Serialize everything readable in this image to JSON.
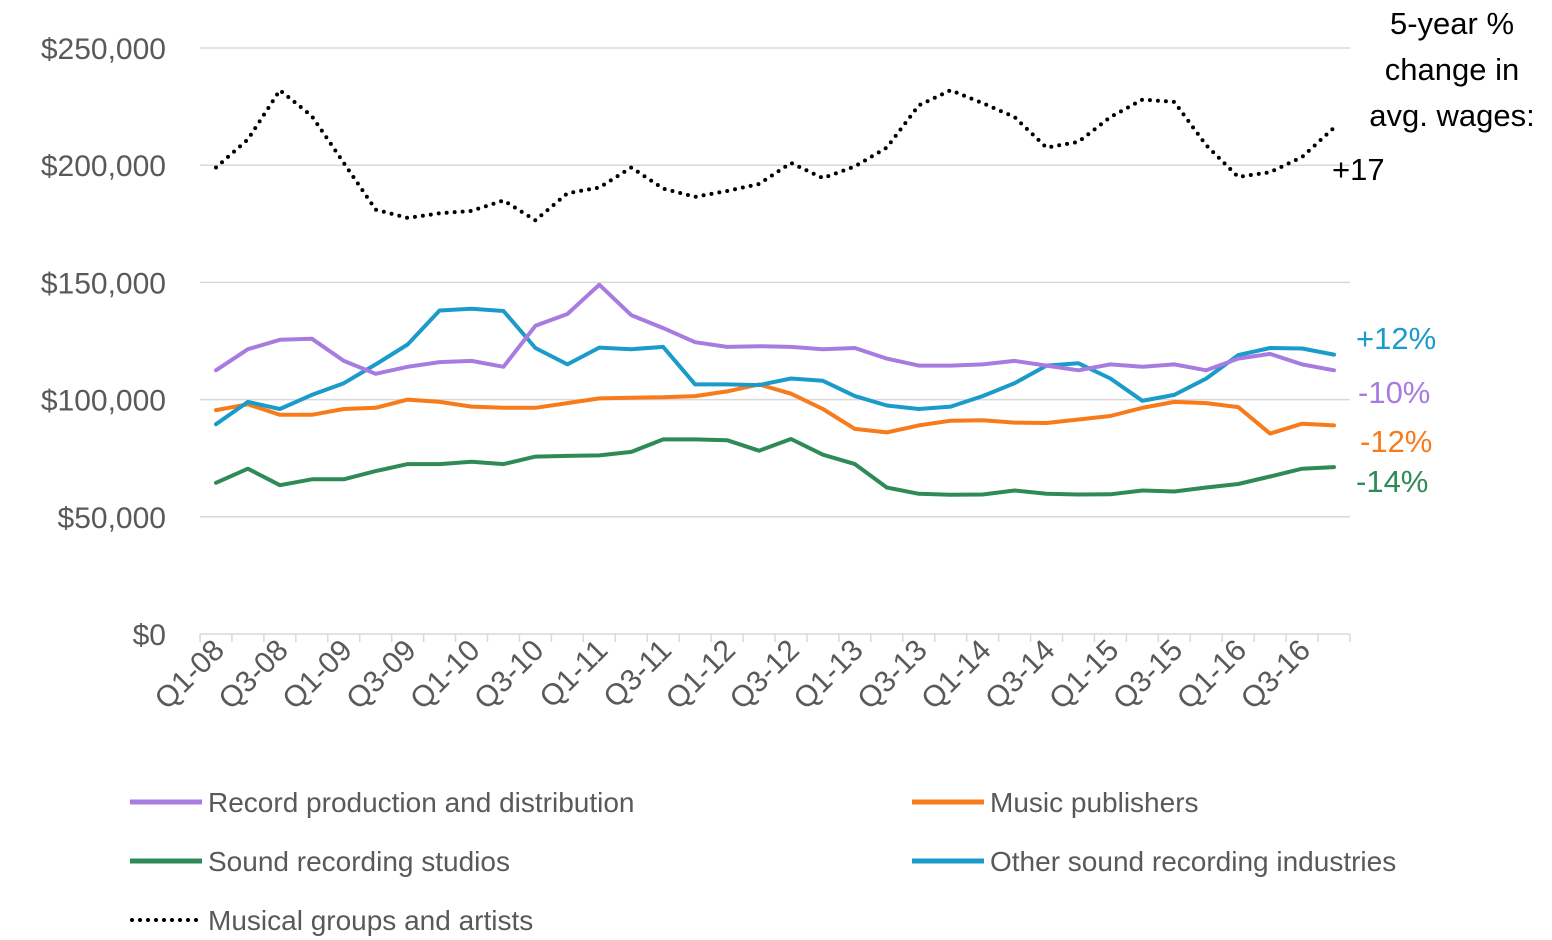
{
  "chart_data": {
    "type": "line",
    "title": "",
    "xlabel": "",
    "ylabel": "",
    "ylim": [
      0,
      250000
    ],
    "yticks": [
      0,
      50000,
      100000,
      150000,
      200000,
      250000
    ],
    "ytick_labels": [
      "$0",
      "$50,000",
      "$100,000",
      "$150,000",
      "$200,000",
      "$250,000"
    ],
    "grid": true,
    "categories": [
      "Q1-08",
      "Q2-08",
      "Q3-08",
      "Q4-08",
      "Q1-09",
      "Q2-09",
      "Q3-09",
      "Q4-09",
      "Q1-10",
      "Q2-10",
      "Q3-10",
      "Q4-10",
      "Q1-11",
      "Q2-11",
      "Q3-11",
      "Q4-11",
      "Q1-12",
      "Q2-12",
      "Q3-12",
      "Q4-12",
      "Q1-13",
      "Q2-13",
      "Q3-13",
      "Q4-13",
      "Q1-14",
      "Q2-14",
      "Q3-14",
      "Q4-14",
      "Q1-15",
      "Q2-15",
      "Q3-15",
      "Q4-15",
      "Q1-16",
      "Q2-16",
      "Q3-16",
      "Q4-16"
    ],
    "x_tick_labels": [
      "Q1-08",
      "Q3-08",
      "Q1-09",
      "Q3-09",
      "Q1-10",
      "Q3-10",
      "Q1-11",
      "Q3-11",
      "Q1-12",
      "Q3-12",
      "Q1-13",
      "Q3-13",
      "Q1-14",
      "Q3-14",
      "Q1-15",
      "Q3-15",
      "Q1-16",
      "Q3-16"
    ],
    "annotation": {
      "lines": [
        "5-year %",
        "change in",
        "avg. wages:"
      ]
    },
    "series": [
      {
        "name": "Record production and distribution",
        "color": "#A87BE0",
        "style": "solid",
        "end_label": "-10%",
        "values": [
          112500,
          121500,
          125500,
          126000,
          116500,
          111000,
          114000,
          116000,
          116500,
          114000,
          131500,
          136500,
          149000,
          136000,
          130500,
          124500,
          122500,
          122800,
          122500,
          121500,
          122000,
          117500,
          114500,
          114500,
          115000,
          116500,
          114500,
          112500,
          115000,
          114000,
          115000,
          112500,
          117500,
          119500,
          115000,
          112500
        ]
      },
      {
        "name": "Music publishers",
        "color": "#F77B1B",
        "style": "solid",
        "end_label": "-12%",
        "values": [
          95500,
          98000,
          93500,
          93500,
          96000,
          96500,
          100000,
          99000,
          97000,
          96500,
          96500,
          98500,
          100500,
          100800,
          101000,
          101500,
          103500,
          106500,
          102500,
          96000,
          87500,
          86000,
          89000,
          91000,
          91200,
          90200,
          90000,
          91500,
          93000,
          96500,
          99000,
          98500,
          96800,
          85500,
          89700,
          89000
        ]
      },
      {
        "name": "Sound recording studios",
        "color": "#2E8B57",
        "style": "solid",
        "end_label": "-14%",
        "values": [
          64500,
          70500,
          63500,
          66000,
          66000,
          69500,
          72500,
          72500,
          73500,
          72500,
          75700,
          76000,
          76200,
          77700,
          83000,
          83000,
          82700,
          78200,
          83200,
          76500,
          72500,
          62500,
          59800,
          59400,
          59500,
          61200,
          59800,
          59500,
          59600,
          61200,
          60800,
          62500,
          64000,
          67200,
          70500,
          71200
        ]
      },
      {
        "name": "Other sound recording industries",
        "color": "#1A9BC9",
        "style": "solid",
        "end_label": "+12%",
        "values": [
          89500,
          99000,
          96000,
          102000,
          107000,
          115000,
          123500,
          138000,
          138800,
          137800,
          122000,
          115000,
          122200,
          121500,
          122500,
          106500,
          106500,
          106200,
          109000,
          108000,
          101500,
          97500,
          96000,
          97000,
          101500,
          107000,
          114500,
          115500,
          109000,
          99500,
          102000,
          109000,
          119000,
          122000,
          121800,
          119200
        ]
      },
      {
        "name": "Musical groups and artists",
        "color": "#000000",
        "style": "dotted",
        "end_label": "+17",
        "values": [
          199000,
          211000,
          232000,
          221000,
          201000,
          181000,
          177500,
          179500,
          180500,
          185000,
          176500,
          188000,
          190500,
          199000,
          190000,
          186500,
          189000,
          192000,
          201000,
          194500,
          199500,
          207500,
          225500,
          232000,
          226500,
          220500,
          207500,
          210000,
          220500,
          228000,
          227000,
          208500,
          195000,
          197000,
          203500,
          216000
        ]
      }
    ],
    "legend_placement": "bottom"
  }
}
